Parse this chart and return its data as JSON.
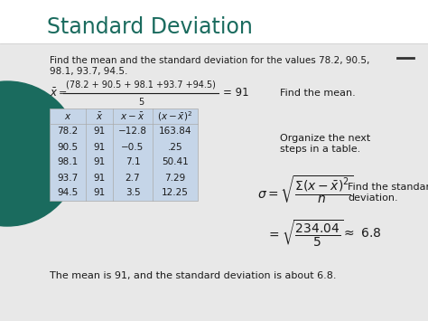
{
  "title": "Standard Deviation",
  "title_color": "#1a6b5e",
  "bg_color": "#ffffff",
  "left_circle_color": "#1a6b5e",
  "problem_text_1": "Find the mean and the standard deviation for the values 78.2, 90.5,",
  "problem_text_2": "98.1, 93.7, 94.5.",
  "find_mean_text": "Find the mean.",
  "organize_text": "Organize the next\nsteps in a table.",
  "table_data": [
    [
      "78.2",
      "91",
      "−12.8",
      "163.84"
    ],
    [
      "90.5",
      "91",
      "−0.5",
      ".25"
    ],
    [
      "98.1",
      "91",
      "7.1",
      "50.41"
    ],
    [
      "93.7",
      "91",
      "2.7",
      "7.29"
    ],
    [
      "94.5",
      "91",
      "3.5",
      "12.25"
    ]
  ],
  "table_bg": "#c5d5e8",
  "sigma_formula_text_1": "Find the standard",
  "sigma_formula_text_2": "deviation.",
  "footer_text": "The mean is 91, and the standard deviation is about 6.8.",
  "dash_color": "#333333",
  "text_color": "#1a1a1a",
  "light_bg": "#e8e8e8"
}
